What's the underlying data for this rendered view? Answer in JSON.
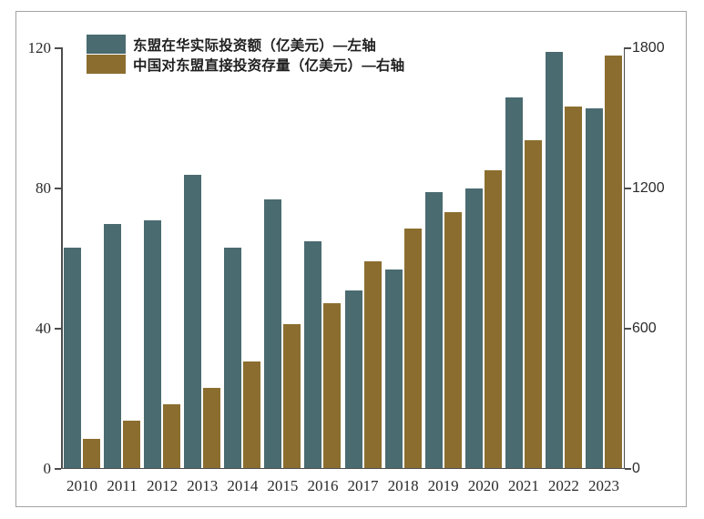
{
  "chart_data": {
    "type": "bar",
    "title": "",
    "categories": [
      "2010",
      "2011",
      "2012",
      "2013",
      "2014",
      "2015",
      "2016",
      "2017",
      "2018",
      "2019",
      "2020",
      "2021",
      "2022",
      "2023"
    ],
    "series": [
      {
        "name": "东盟在华实际投资额（亿美元）—左轴",
        "axis": "left",
        "color": "#4a6b70",
        "values": [
          63,
          70,
          71,
          84,
          63,
          77,
          65,
          51,
          57,
          79,
          80,
          106,
          119,
          103
        ]
      },
      {
        "name": "中国对东盟直接投资存量（亿美元）—右轴",
        "axis": "right",
        "color": "#8b6e2f",
        "values": [
          130,
          205,
          275,
          345,
          460,
          620,
          710,
          890,
          1030,
          1100,
          1280,
          1405,
          1550,
          1770
        ]
      }
    ],
    "left_axis": {
      "ticks": [
        0,
        40,
        80,
        120
      ],
      "min": 0,
      "max": 120
    },
    "right_axis": {
      "ticks": [
        0,
        600,
        1200,
        1800
      ],
      "min": 0,
      "max": 1800
    },
    "legend_position": "top-left",
    "grid": false
  }
}
